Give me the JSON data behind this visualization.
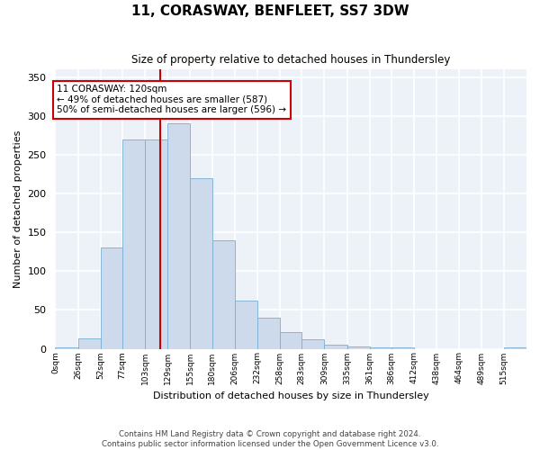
{
  "title": "11, CORASWAY, BENFLEET, SS7 3DW",
  "subtitle": "Size of property relative to detached houses in Thundersley",
  "xlabel": "Distribution of detached houses by size in Thundersley",
  "ylabel": "Number of detached properties",
  "bin_labels": [
    "0sqm",
    "26sqm",
    "52sqm",
    "77sqm",
    "103sqm",
    "129sqm",
    "155sqm",
    "180sqm",
    "206sqm",
    "232sqm",
    "258sqm",
    "283sqm",
    "309sqm",
    "335sqm",
    "361sqm",
    "386sqm",
    "412sqm",
    "438sqm",
    "464sqm",
    "489sqm",
    "515sqm"
  ],
  "bin_edges": [
    0,
    26,
    52,
    77,
    103,
    129,
    155,
    180,
    206,
    232,
    258,
    283,
    309,
    335,
    361,
    386,
    412,
    438,
    464,
    489,
    515,
    541
  ],
  "bar_heights": [
    2,
    13,
    130,
    270,
    270,
    290,
    220,
    140,
    62,
    40,
    21,
    12,
    5,
    3,
    2,
    2,
    0,
    0,
    0,
    0,
    2
  ],
  "bar_color": "#ccdaeb",
  "bar_edge_color": "#7aafd4",
  "bg_color": "#edf2f9",
  "grid_color": "#ffffff",
  "vline_x": 120,
  "vline_color": "#cc0000",
  "annotation_text": "11 CORASWAY: 120sqm\n← 49% of detached houses are smaller (587)\n50% of semi-detached houses are larger (596) →",
  "annotation_box_color": "#ffffff",
  "annotation_box_edge": "#cc0000",
  "ylim": [
    0,
    360
  ],
  "yticks": [
    0,
    50,
    100,
    150,
    200,
    250,
    300,
    350
  ],
  "xlim_min": 0,
  "xlim_max": 541,
  "footer_line1": "Contains HM Land Registry data © Crown copyright and database right 2024.",
  "footer_line2": "Contains public sector information licensed under the Open Government Licence v3.0."
}
